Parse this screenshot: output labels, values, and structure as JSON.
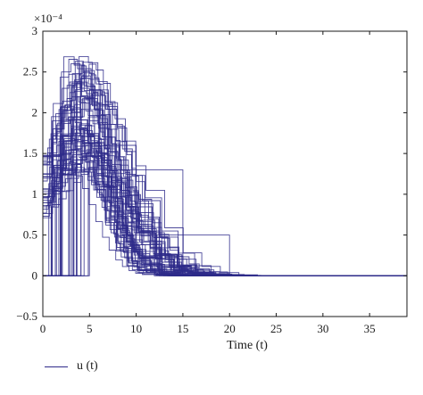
{
  "colors": {
    "series": "#2e2a8a",
    "axis": "#1a1a1a",
    "background": "#ffffff"
  },
  "chart_data": {
    "type": "line",
    "title": "",
    "xlabel": "Time (t)",
    "ylabel": "",
    "xlim": [
      0,
      39
    ],
    "ylim": [
      -0.5,
      3
    ],
    "y_exponent_label": "×10⁻⁴",
    "xticks": [
      0,
      5,
      10,
      15,
      20,
      25,
      30,
      35
    ],
    "xtick_labels": [
      "0",
      "5",
      "10",
      "15",
      "20",
      "25",
      "30",
      "35"
    ],
    "yticks": [
      -0.5,
      0,
      0.5,
      1,
      1.5,
      2,
      2.5,
      3
    ],
    "ytick_labels": [
      "−0.5",
      "0",
      "0.5",
      "1",
      "1.5",
      "2",
      "2.5",
      "3"
    ],
    "grid": false,
    "legend_position": "bottom-left",
    "legend": [
      "u (t)"
    ],
    "series_count": 60,
    "series_shape": "piecewise-constant (step) curves, rising from 0 to peaks of about 1.2–2.7 near t = 2–5 and decaying to 0; most reach 0 by t ≈ 15, the last ones by t ≈ 20",
    "representative_series": [
      {
        "x": [
          0,
          1,
          2,
          3,
          4,
          5,
          6,
          7,
          8,
          9,
          10,
          12,
          14,
          16,
          20,
          39
        ],
        "y": [
          0,
          1.9,
          2.5,
          2.6,
          2.3,
          1.9,
          1.5,
          1.1,
          0.75,
          0.5,
          0.3,
          0.12,
          0.05,
          0.02,
          0,
          0
        ]
      },
      {
        "x": [
          0,
          1,
          2,
          3,
          4,
          6,
          10,
          15,
          39
        ],
        "y": [
          0,
          1.2,
          1.3,
          1.3,
          1.3,
          1.3,
          1.3,
          0,
          0
        ]
      },
      {
        "x": [
          0,
          2,
          3,
          4,
          5,
          7,
          10,
          14,
          20,
          39
        ],
        "y": [
          0,
          1.5,
          2.0,
          2.2,
          2.1,
          1.6,
          0.5,
          0.5,
          0,
          0
        ]
      }
    ]
  }
}
